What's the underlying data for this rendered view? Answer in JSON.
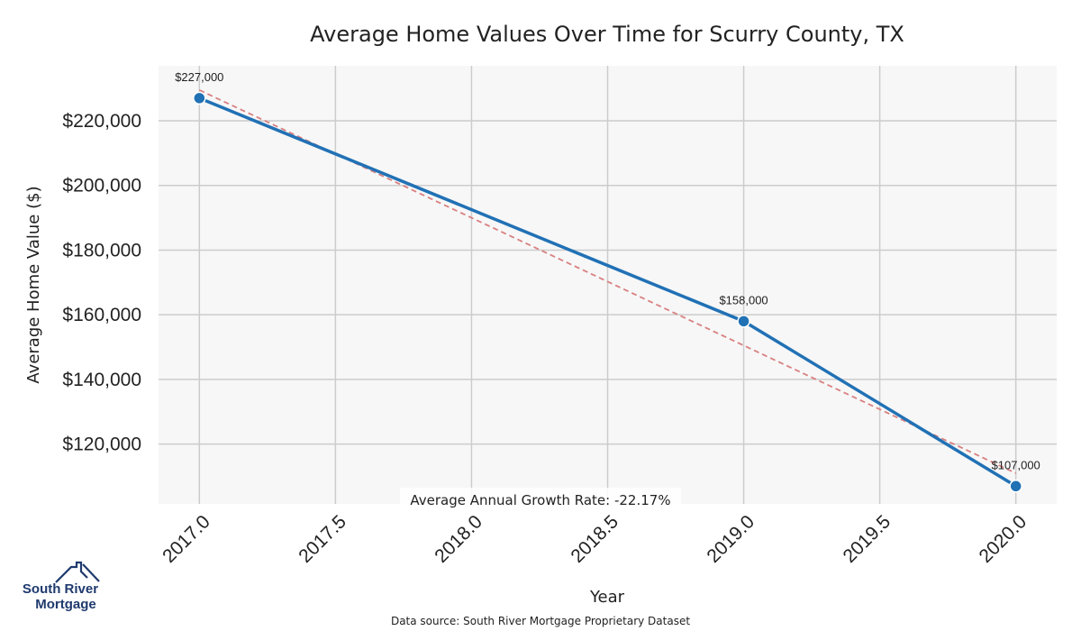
{
  "chart_data": {
    "type": "line",
    "title": "Average Home Values Over Time for Scurry County, TX",
    "xlabel": "Year",
    "ylabel": "Average Home Value ($)",
    "x": [
      2017,
      2019,
      2020
    ],
    "series": [
      {
        "name": "Average Home Value",
        "values": [
          227000,
          158000,
          107000
        ],
        "color": "#2171b5"
      }
    ],
    "data_labels": [
      "$227,000",
      "$158,000",
      "$107,000"
    ],
    "trend_line": {
      "x": [
        2017,
        2020
      ],
      "values": [
        229500,
        111000
      ],
      "color": "#d98080"
    },
    "xlim": [
      2016.85,
      2020.15
    ],
    "ylim": [
      101500,
      237000
    ],
    "x_ticks": [
      2017.0,
      2017.5,
      2018.0,
      2018.5,
      2019.0,
      2019.5,
      2020.0
    ],
    "x_tick_labels": [
      "2017.0",
      "2017.5",
      "2018.0",
      "2018.5",
      "2019.0",
      "2019.5",
      "2020.0"
    ],
    "y_ticks": [
      120000,
      140000,
      160000,
      180000,
      200000,
      220000
    ],
    "y_tick_labels": [
      "$120,000",
      "$140,000",
      "$160,000",
      "$180,000",
      "$200,000",
      "$220,000"
    ],
    "grid": true,
    "annotation": "Average Annual Growth Rate: -22.17%",
    "footer": "Data source: South River Mortgage Proprietary Dataset"
  },
  "logo": {
    "line1": "South River",
    "line2": "Mortgage"
  },
  "colors": {
    "plot_bg": "#f7f7f7",
    "grid": "#cccccc",
    "line": "#2171b5",
    "trend": "#d98080",
    "brand": "#1f3a6e"
  }
}
